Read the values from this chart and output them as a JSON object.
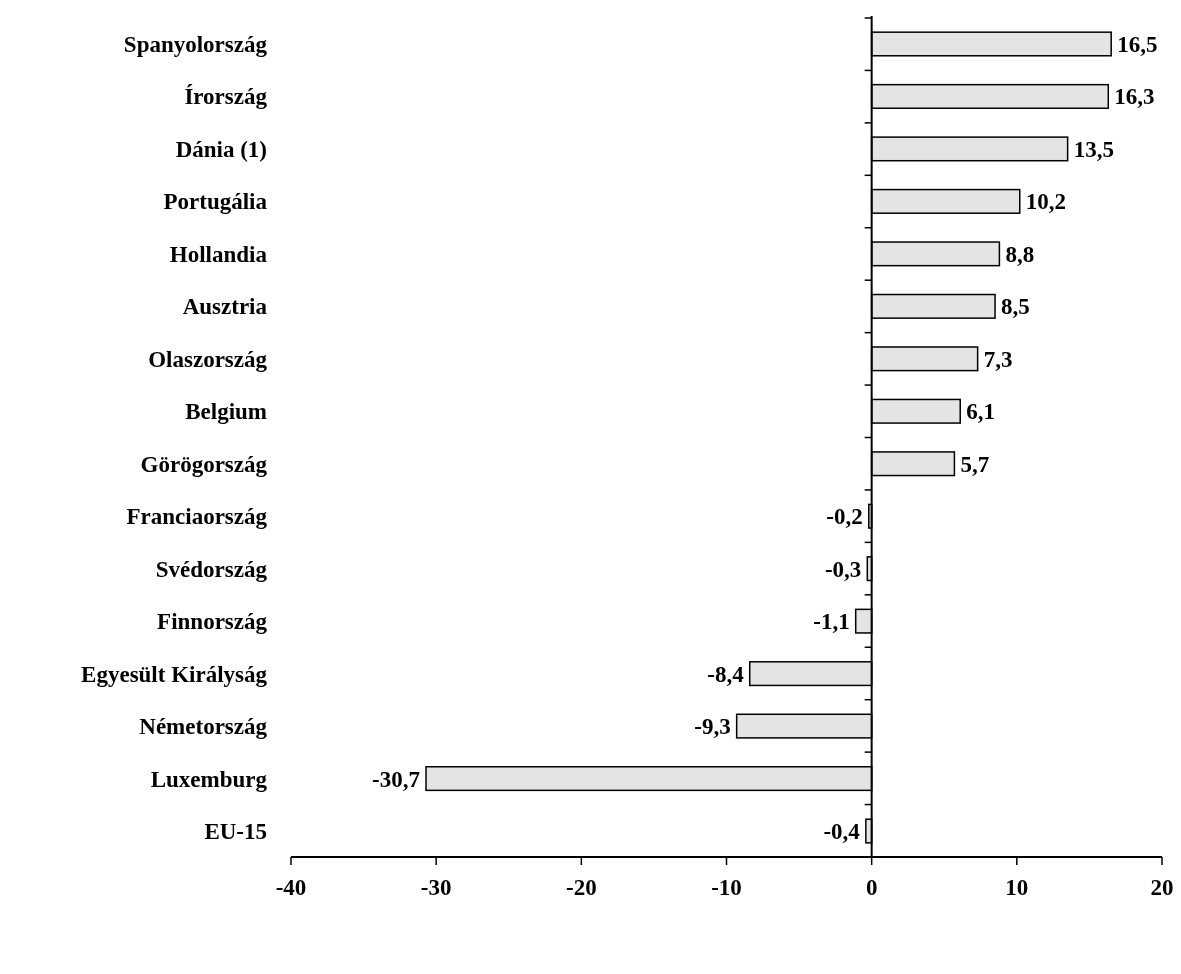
{
  "chart_data": {
    "type": "bar",
    "orientation": "horizontal",
    "categories": [
      "Spanyolország",
      "Írország",
      "Dánia (1)",
      "Portugália",
      "Hollandia",
      "Ausztria",
      "Olaszország",
      "Belgium",
      "Görögország",
      "Franciaország",
      "Svédország",
      "Finnország",
      "Egyesült Királyság",
      "Németország",
      "Luxemburg",
      "EU-15"
    ],
    "values": [
      16.5,
      16.3,
      13.5,
      10.2,
      8.8,
      8.5,
      7.3,
      6.1,
      5.7,
      -0.2,
      -0.3,
      -1.1,
      -8.4,
      -9.3,
      -30.7,
      -0.4
    ],
    "value_labels": [
      "16,5",
      "16,3",
      "13,5",
      "10,2",
      "8,8",
      "8,5",
      "7,3",
      "6,1",
      "5,7",
      "-0,2",
      "-0,3",
      "-1,1",
      "-8,4",
      "-9,3",
      "-30,7",
      "-0,4"
    ],
    "color": "#e4e4e4",
    "xlim": [
      -40,
      20
    ],
    "xticks": [
      -40,
      -30,
      -20,
      -10,
      0,
      10,
      20
    ]
  }
}
